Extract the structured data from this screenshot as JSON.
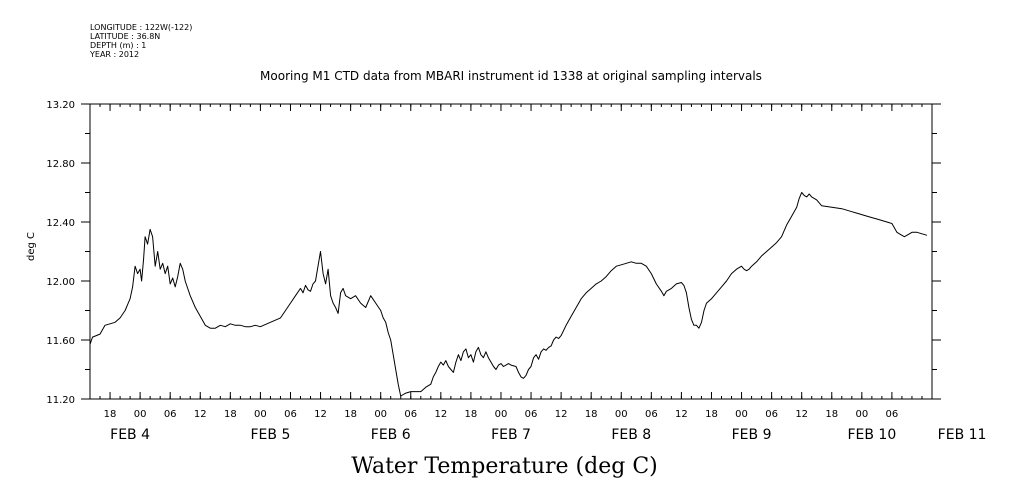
{
  "header": {
    "longitude": "LONGITUDE : 122W(-122)",
    "latitude": "LATITUDE : 36.8N",
    "depth": "DEPTH (m) : 1",
    "year": "YEAR : 2012"
  },
  "chart_data": {
    "type": "line",
    "title": "Mooring M1 CTD data from MBARI instrument id 1338 at original sampling intervals",
    "ylabel": "deg C",
    "xlabel": "Water Temperature (deg C)",
    "ylim": [
      11.2,
      13.2
    ],
    "xlim_hours": [
      -10,
      158
    ],
    "y_ticks": [
      "11.20",
      "11.60",
      "12.00",
      "12.40",
      "12.80",
      "13.20"
    ],
    "hour_tick_labels": [
      {
        "h": -6,
        "label": "18"
      },
      {
        "h": 0,
        "label": "00"
      },
      {
        "h": 6,
        "label": "06"
      },
      {
        "h": 12,
        "label": "12"
      },
      {
        "h": 18,
        "label": "18"
      },
      {
        "h": 24,
        "label": "00"
      },
      {
        "h": 30,
        "label": "06"
      },
      {
        "h": 36,
        "label": "12"
      },
      {
        "h": 42,
        "label": "18"
      },
      {
        "h": 48,
        "label": "00"
      },
      {
        "h": 54,
        "label": "06"
      },
      {
        "h": 60,
        "label": "12"
      },
      {
        "h": 66,
        "label": "18"
      },
      {
        "h": 72,
        "label": "00"
      },
      {
        "h": 78,
        "label": "06"
      },
      {
        "h": 84,
        "label": "12"
      },
      {
        "h": 90,
        "label": "18"
      },
      {
        "h": 96,
        "label": "00"
      },
      {
        "h": 102,
        "label": "06"
      },
      {
        "h": 108,
        "label": "12"
      },
      {
        "h": 114,
        "label": "18"
      },
      {
        "h": 120,
        "label": "00"
      },
      {
        "h": 126,
        "label": "06"
      },
      {
        "h": 132,
        "label": "12"
      },
      {
        "h": 138,
        "label": "18"
      },
      {
        "h": 144,
        "label": "00"
      },
      {
        "h": 150,
        "label": "06"
      }
    ],
    "date_labels": [
      {
        "h": -2,
        "label": "FEB  4"
      },
      {
        "h": 26,
        "label": "FEB  5"
      },
      {
        "h": 50,
        "label": "FEB  6"
      },
      {
        "h": 74,
        "label": "FEB  7"
      },
      {
        "h": 98,
        "label": "FEB  8"
      },
      {
        "h": 122,
        "label": "FEB  9"
      },
      {
        "h": 146,
        "label": "FEB 10"
      },
      {
        "h": 164,
        "label": "FEB 11"
      }
    ],
    "series": [
      {
        "color": "#000000",
        "points": [
          [
            -10,
            11.57
          ],
          [
            -9.5,
            11.62
          ],
          [
            -8,
            11.64
          ],
          [
            -7,
            11.7
          ],
          [
            -6,
            11.71
          ],
          [
            -5,
            11.72
          ],
          [
            -4,
            11.75
          ],
          [
            -3,
            11.8
          ],
          [
            -2,
            11.88
          ],
          [
            -1.5,
            11.96
          ],
          [
            -1,
            12.1
          ],
          [
            -0.5,
            12.05
          ],
          [
            0,
            12.08
          ],
          [
            0.3,
            12.0
          ],
          [
            0.7,
            12.15
          ],
          [
            1,
            12.3
          ],
          [
            1.5,
            12.25
          ],
          [
            2,
            12.35
          ],
          [
            2.5,
            12.3
          ],
          [
            3,
            12.1
          ],
          [
            3.5,
            12.2
          ],
          [
            4,
            12.08
          ],
          [
            4.5,
            12.12
          ],
          [
            5,
            12.05
          ],
          [
            5.5,
            12.1
          ],
          [
            6,
            11.98
          ],
          [
            6.5,
            12.02
          ],
          [
            7,
            11.96
          ],
          [
            7.5,
            12.03
          ],
          [
            8,
            12.12
          ],
          [
            8.5,
            12.08
          ],
          [
            9,
            12.0
          ],
          [
            9.5,
            11.95
          ],
          [
            10,
            11.9
          ],
          [
            11,
            11.82
          ],
          [
            12,
            11.76
          ],
          [
            13,
            11.7
          ],
          [
            14,
            11.68
          ],
          [
            15,
            11.68
          ],
          [
            16,
            11.7
          ],
          [
            17,
            11.69
          ],
          [
            18,
            11.71
          ],
          [
            19,
            11.7
          ],
          [
            20,
            11.7
          ],
          [
            21,
            11.69
          ],
          [
            22,
            11.69
          ],
          [
            23,
            11.7
          ],
          [
            24,
            11.69
          ],
          [
            26,
            11.72
          ],
          [
            28,
            11.75
          ],
          [
            30,
            11.85
          ],
          [
            31,
            11.9
          ],
          [
            32,
            11.95
          ],
          [
            32.5,
            11.92
          ],
          [
            33,
            11.97
          ],
          [
            33.5,
            11.94
          ],
          [
            34,
            11.93
          ],
          [
            34.5,
            11.98
          ],
          [
            35,
            12.0
          ],
          [
            35.5,
            12.1
          ],
          [
            36,
            12.2
          ],
          [
            36.5,
            12.05
          ],
          [
            37,
            11.98
          ],
          [
            37.5,
            12.08
          ],
          [
            38,
            11.9
          ],
          [
            38.5,
            11.85
          ],
          [
            39,
            11.82
          ],
          [
            39.5,
            11.78
          ],
          [
            40,
            11.92
          ],
          [
            40.5,
            11.95
          ],
          [
            41,
            11.9
          ],
          [
            42,
            11.88
          ],
          [
            43,
            11.9
          ],
          [
            44,
            11.85
          ],
          [
            45,
            11.82
          ],
          [
            46,
            11.9
          ],
          [
            47,
            11.85
          ],
          [
            48,
            11.8
          ],
          [
            48.5,
            11.75
          ],
          [
            49,
            11.72
          ],
          [
            49.5,
            11.65
          ],
          [
            50,
            11.6
          ],
          [
            50.5,
            11.5
          ],
          [
            51,
            11.4
          ],
          [
            51.5,
            11.3
          ],
          [
            52,
            11.22
          ],
          [
            53,
            11.24
          ],
          [
            54,
            11.25
          ],
          [
            55,
            11.25
          ],
          [
            56,
            11.25
          ],
          [
            57,
            11.28
          ],
          [
            58,
            11.3
          ],
          [
            58.5,
            11.35
          ],
          [
            59,
            11.38
          ],
          [
            59.5,
            11.42
          ],
          [
            60,
            11.45
          ],
          [
            60.5,
            11.43
          ],
          [
            61,
            11.46
          ],
          [
            61.5,
            11.42
          ],
          [
            62,
            11.4
          ],
          [
            62.5,
            11.38
          ],
          [
            63,
            11.45
          ],
          [
            63.5,
            11.5
          ],
          [
            64,
            11.46
          ],
          [
            64.5,
            11.52
          ],
          [
            65,
            11.54
          ],
          [
            65.5,
            11.48
          ],
          [
            66,
            11.5
          ],
          [
            66.5,
            11.45
          ],
          [
            67,
            11.52
          ],
          [
            67.5,
            11.55
          ],
          [
            68,
            11.5
          ],
          [
            68.5,
            11.48
          ],
          [
            69,
            11.52
          ],
          [
            69.5,
            11.48
          ],
          [
            70,
            11.45
          ],
          [
            70.5,
            11.42
          ],
          [
            71,
            11.4
          ],
          [
            71.5,
            11.43
          ],
          [
            72,
            11.44
          ],
          [
            72.5,
            11.42
          ],
          [
            73,
            11.43
          ],
          [
            73.5,
            11.44
          ],
          [
            74,
            11.43
          ],
          [
            75,
            11.42
          ],
          [
            75.5,
            11.38
          ],
          [
            76,
            11.35
          ],
          [
            76.5,
            11.34
          ],
          [
            77,
            11.36
          ],
          [
            77.5,
            11.4
          ],
          [
            78,
            11.42
          ],
          [
            78.5,
            11.48
          ],
          [
            79,
            11.5
          ],
          [
            79.5,
            11.47
          ],
          [
            80,
            11.52
          ],
          [
            80.5,
            11.54
          ],
          [
            81,
            11.53
          ],
          [
            81.5,
            11.55
          ],
          [
            82,
            11.56
          ],
          [
            82.5,
            11.6
          ],
          [
            83,
            11.62
          ],
          [
            83.5,
            11.61
          ],
          [
            84,
            11.63
          ],
          [
            85,
            11.7
          ],
          [
            86,
            11.76
          ],
          [
            87,
            11.82
          ],
          [
            88,
            11.88
          ],
          [
            89,
            11.92
          ],
          [
            90,
            11.95
          ],
          [
            91,
            11.98
          ],
          [
            92,
            12.0
          ],
          [
            93,
            12.03
          ],
          [
            94,
            12.07
          ],
          [
            95,
            12.1
          ],
          [
            96,
            12.11
          ],
          [
            97,
            12.12
          ],
          [
            98,
            12.13
          ],
          [
            99,
            12.12
          ],
          [
            100,
            12.12
          ],
          [
            101,
            12.1
          ],
          [
            102,
            12.05
          ],
          [
            103,
            11.98
          ],
          [
            104,
            11.93
          ],
          [
            104.5,
            11.9
          ],
          [
            105,
            11.93
          ],
          [
            106,
            11.95
          ],
          [
            107,
            11.98
          ],
          [
            108,
            11.99
          ],
          [
            108.5,
            11.97
          ],
          [
            109,
            11.92
          ],
          [
            109.5,
            11.82
          ],
          [
            110,
            11.74
          ],
          [
            110.5,
            11.7
          ],
          [
            111,
            11.7
          ],
          [
            111.5,
            11.68
          ],
          [
            112,
            11.72
          ],
          [
            112.5,
            11.8
          ],
          [
            113,
            11.85
          ],
          [
            114,
            11.88
          ],
          [
            115,
            11.92
          ],
          [
            116,
            11.96
          ],
          [
            117,
            12.0
          ],
          [
            118,
            12.05
          ],
          [
            119,
            12.08
          ],
          [
            120,
            12.1
          ],
          [
            120.5,
            12.08
          ],
          [
            121,
            12.07
          ],
          [
            121.5,
            12.08
          ],
          [
            122,
            12.1
          ],
          [
            123,
            12.13
          ],
          [
            124,
            12.17
          ],
          [
            125,
            12.2
          ],
          [
            126,
            12.23
          ],
          [
            127,
            12.26
          ],
          [
            128,
            12.3
          ],
          [
            128.5,
            12.34
          ],
          [
            129,
            12.38
          ],
          [
            130,
            12.44
          ],
          [
            131,
            12.5
          ],
          [
            131.5,
            12.56
          ],
          [
            132,
            12.6
          ],
          [
            132.5,
            12.58
          ],
          [
            133,
            12.57
          ],
          [
            133.5,
            12.59
          ],
          [
            134,
            12.57
          ],
          [
            135,
            12.55
          ],
          [
            136,
            12.51
          ],
          [
            138,
            12.5
          ],
          [
            140,
            12.49
          ],
          [
            142,
            12.47
          ],
          [
            143,
            12.46
          ],
          [
            144,
            12.45
          ],
          [
            145,
            12.44
          ],
          [
            146,
            12.43
          ],
          [
            147,
            12.42
          ],
          [
            148,
            12.41
          ],
          [
            149,
            12.4
          ],
          [
            150,
            12.39
          ],
          [
            150.5,
            12.36
          ],
          [
            151,
            12.33
          ],
          [
            152,
            12.31
          ],
          [
            152.5,
            12.3
          ],
          [
            153,
            12.31
          ],
          [
            154,
            12.33
          ],
          [
            155,
            12.33
          ],
          [
            156,
            12.32
          ],
          [
            157,
            12.31
          ]
        ]
      }
    ]
  }
}
